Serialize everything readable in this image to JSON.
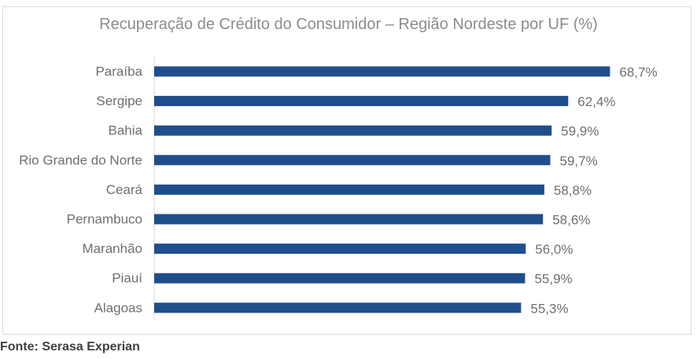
{
  "chart_data": {
    "type": "bar",
    "orientation": "horizontal",
    "title": "Recuperação de Crédito do Consumidor – Região Nordeste por UF (%)",
    "categories": [
      "Paraíba",
      "Sergipe",
      "Bahia",
      "Rio Grande do Norte",
      "Ceará",
      "Pernambuco",
      "Maranhão",
      "Piauí",
      "Alagoas"
    ],
    "values": [
      68.7,
      62.4,
      59.9,
      59.7,
      58.8,
      58.6,
      56.0,
      55.9,
      55.3
    ],
    "data_labels": [
      "68,7%",
      "62,4%",
      "59,9%",
      "59,7%",
      "58,8%",
      "58,6%",
      "56,0%",
      "55,9%",
      "55,3%"
    ],
    "xlim": [
      0,
      83
    ],
    "grid": false,
    "legend": "none",
    "bar_color": "#1f4e8c",
    "label_color": "#6f6f6f"
  },
  "footer": {
    "source": "Fonte: Serasa Experian"
  }
}
